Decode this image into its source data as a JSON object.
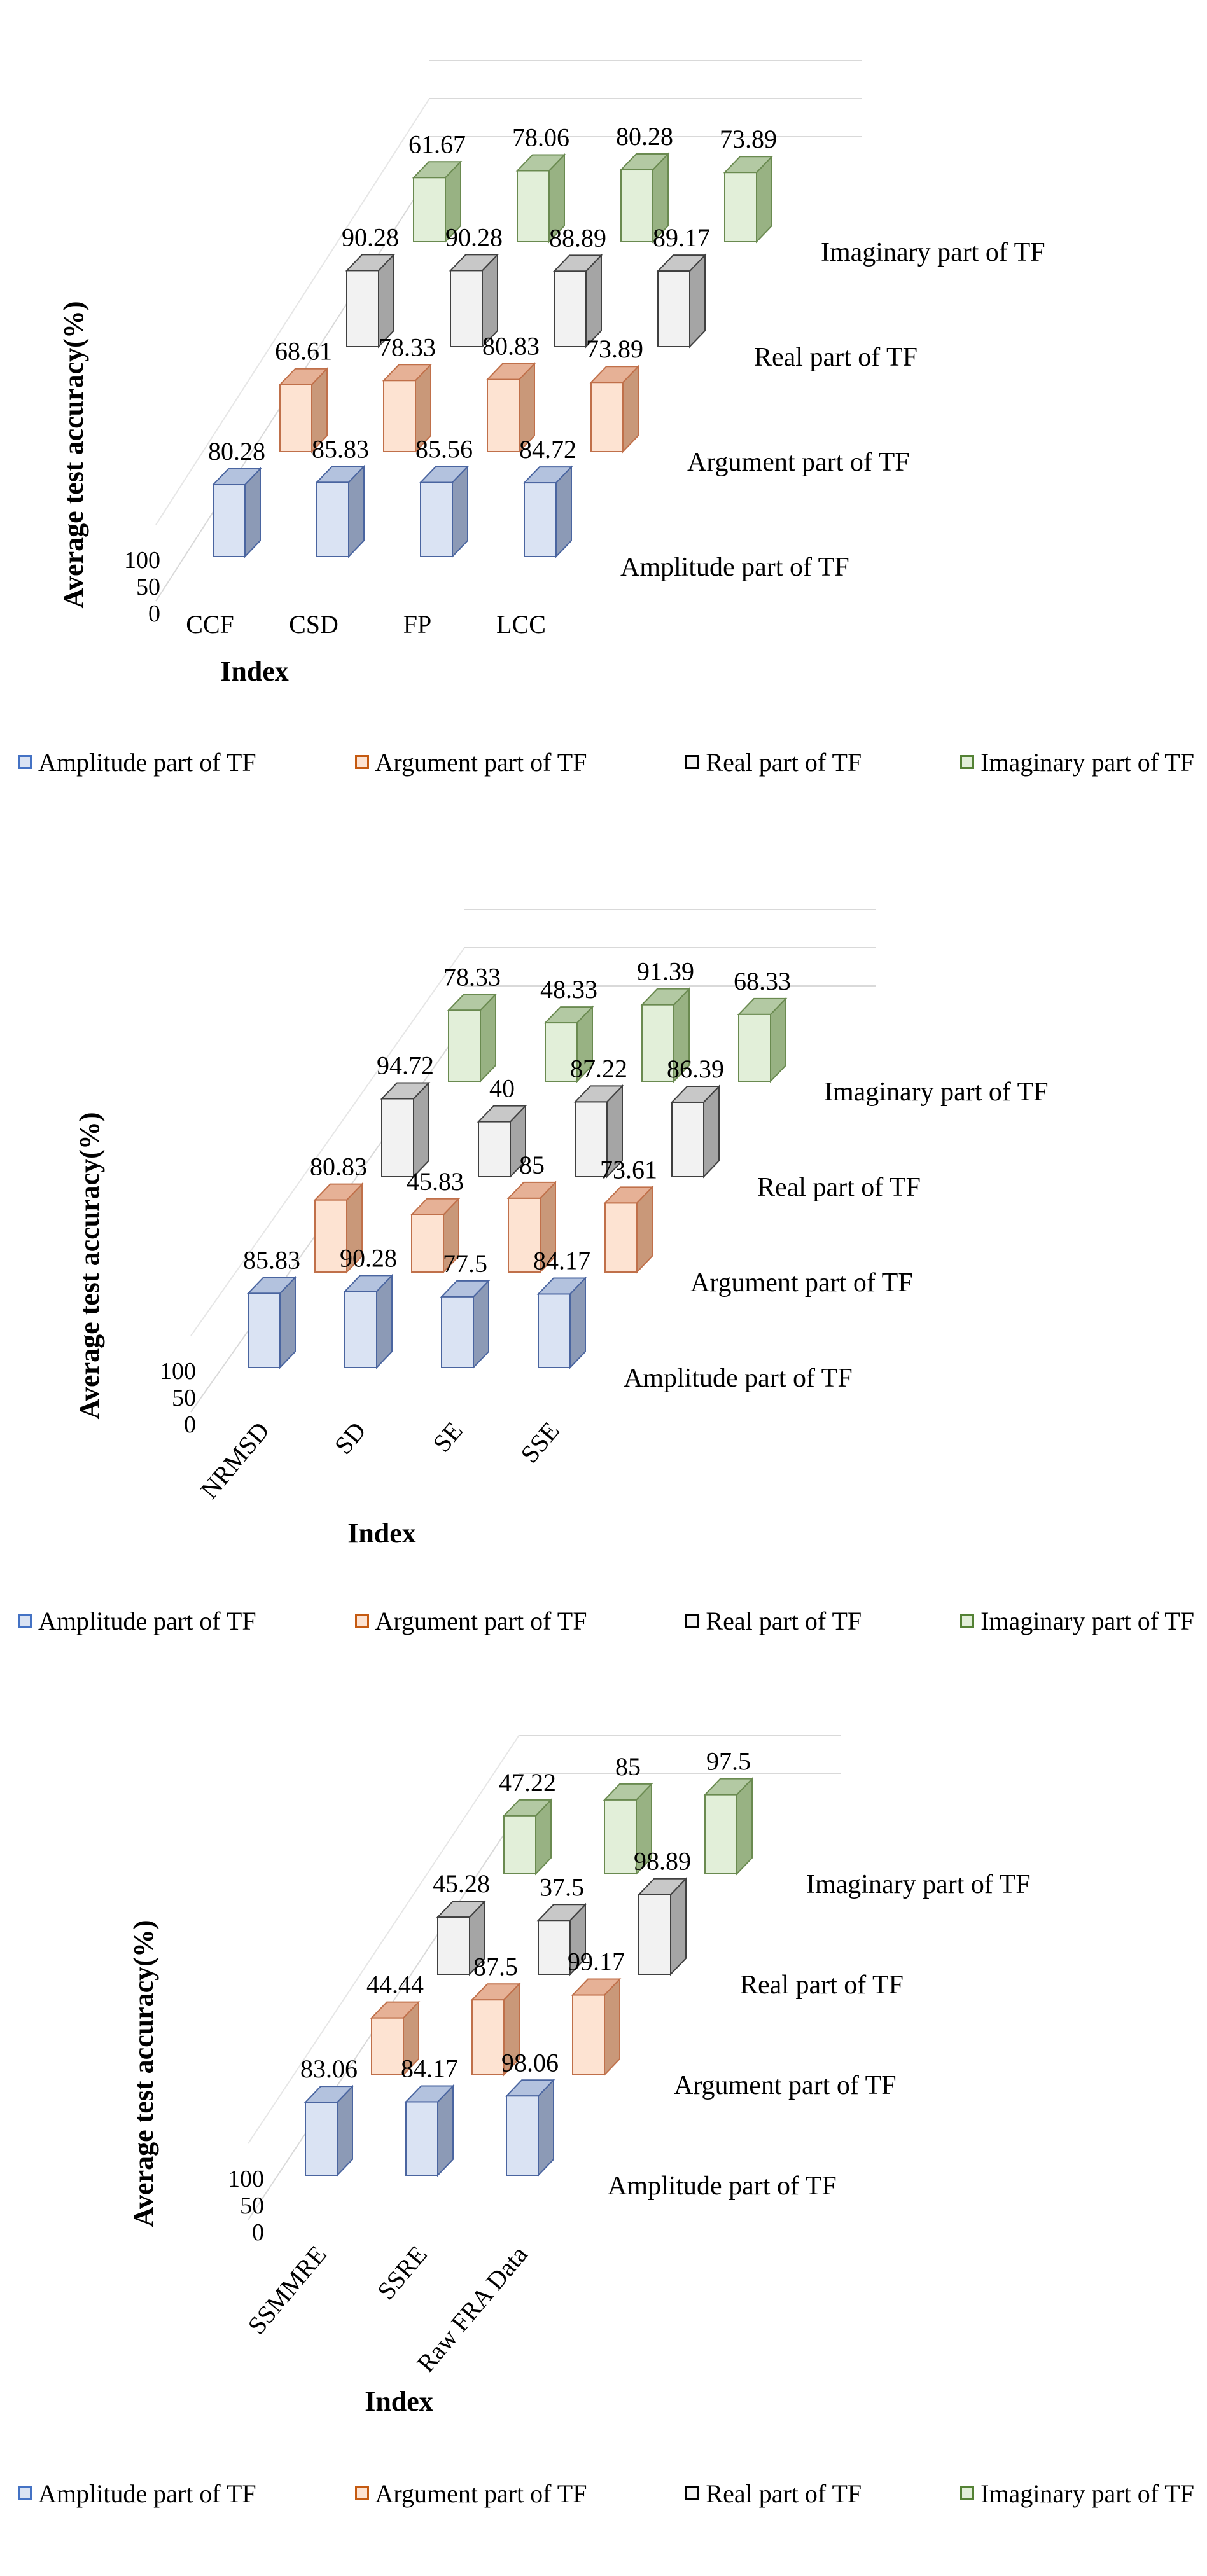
{
  "chart_data": [
    {
      "type": "bar",
      "variant": "3d-column",
      "categories": [
        "CCF",
        "CSD",
        "FP",
        "LCC"
      ],
      "series": [
        {
          "name": "Amplitude part of TF",
          "values": [
            80.28,
            85.83,
            85.56,
            84.72
          ]
        },
        {
          "name": "Argument part of TF",
          "values": [
            68.61,
            78.33,
            80.83,
            73.89
          ]
        },
        {
          "name": "Real part of TF",
          "values": [
            90.28,
            90.28,
            88.89,
            89.17
          ]
        },
        {
          "name": "Imaginary part of TF",
          "values": [
            61.67,
            78.06,
            80.28,
            73.89
          ]
        }
      ],
      "xlabel": "Index",
      "ylabel": "Average test accuracy(%)",
      "yticks": [
        "0",
        "50",
        "100"
      ],
      "ylim": [
        0,
        100
      ],
      "legend_position": "bottom",
      "category_label_rotation": 0
    },
    {
      "type": "bar",
      "variant": "3d-column",
      "categories": [
        "NRMSD",
        "SD",
        "SE",
        "SSE"
      ],
      "series": [
        {
          "name": "Amplitude part of TF",
          "values": [
            85.83,
            90.28,
            77.5,
            84.17
          ]
        },
        {
          "name": "Argument part of TF",
          "values": [
            80.83,
            45.83,
            85,
            73.61
          ]
        },
        {
          "name": "Real part of TF",
          "values": [
            94.72,
            40,
            87.22,
            86.39
          ]
        },
        {
          "name": "Imaginary part of TF",
          "values": [
            78.33,
            48.33,
            91.39,
            68.33
          ]
        }
      ],
      "xlabel": "Index",
      "ylabel": "Average test accuracy(%)",
      "yticks": [
        "0",
        "50",
        "100"
      ],
      "ylim": [
        0,
        100
      ],
      "legend_position": "bottom",
      "category_label_rotation": -50
    },
    {
      "type": "bar",
      "variant": "3d-column",
      "categories": [
        "SSMMRE",
        "SSRE",
        "Raw FRA Data"
      ],
      "series": [
        {
          "name": "Amplitude part of TF",
          "values": [
            83.06,
            84.17,
            98.06
          ]
        },
        {
          "name": "Argument part of TF",
          "values": [
            44.44,
            87.5,
            99.17
          ]
        },
        {
          "name": "Real part of TF",
          "values": [
            45.28,
            37.5,
            98.89
          ]
        },
        {
          "name": "Imaginary part of TF",
          "values": [
            47.22,
            85,
            97.5
          ]
        }
      ],
      "xlabel": "Index",
      "ylabel": "Average test accuracy(%)",
      "yticks": [
        "0",
        "50",
        "100"
      ],
      "ylim": [
        0,
        100
      ],
      "legend_position": "bottom",
      "category_label_rotation": -50
    }
  ],
  "series_colors": [
    {
      "face": "#dae3f3",
      "top": "#b3c2de",
      "side": "#8c9ab6",
      "edge": "#4a65a0",
      "swatch": "#4472c4"
    },
    {
      "face": "#fde3d2",
      "top": "#e6b196",
      "side": "#c99879",
      "edge": "#c0704a",
      "swatch": "#c55a11"
    },
    {
      "face": "#f2f2f2",
      "top": "#c8c8c8",
      "side": "#a5a5a5",
      "edge": "#404040",
      "swatch": "#000000"
    },
    {
      "face": "#e2efd9",
      "top": "#b3c9a3",
      "side": "#98b283",
      "edge": "#6a8a50",
      "swatch": "#548235"
    }
  ]
}
